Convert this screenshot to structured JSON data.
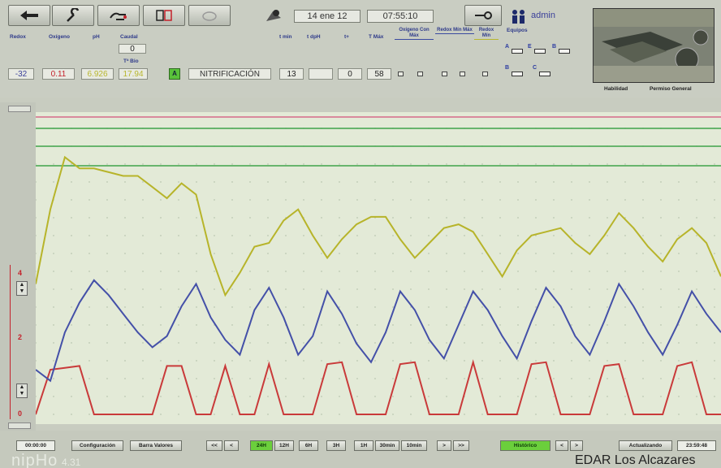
{
  "toolbar": {
    "buttons": [
      "back-icon",
      "wrench-icon",
      "hand-icon",
      "chart-icon",
      "cloud-icon"
    ],
    "date": "14 ene 12",
    "time": "07:55:10",
    "user": "admin"
  },
  "params": {
    "headers": [
      "Redox",
      "Oxígeno",
      "pH",
      "Caudal"
    ],
    "caudal_value": "0",
    "temp_label": "Tª Bio",
    "values": [
      "-32",
      "0.11",
      "6.926",
      "17.94"
    ],
    "mode_badge": "A",
    "phase": "NITRIFICACIÓN",
    "right_headers": [
      "t min",
      "t dpH",
      "t+",
      "T Máx",
      "Oxígeno Con Máx",
      "Redox Mín Máx",
      "Redox Mín"
    ],
    "right_values": [
      "13",
      "",
      "0",
      "58"
    ],
    "equipos_label": "Equipos",
    "equipos": [
      "A",
      "E",
      "B",
      "B",
      "C"
    ]
  },
  "camera": {
    "labels": [
      "Habilidad",
      "Permiso General"
    ]
  },
  "chart_data": {
    "type": "line",
    "title": "",
    "xlabel": "",
    "ylabel": "",
    "yticks": [
      "4",
      "2",
      "0"
    ],
    "series": [
      {
        "color": "#c93a3a",
        "values": [
          0,
          1.2,
          1.25,
          1.3,
          0,
          0,
          0,
          0,
          0,
          1.3,
          1.3,
          0,
          0,
          1.3,
          0,
          0,
          1.35,
          0,
          0,
          0,
          1.35,
          1.4,
          0,
          0,
          0,
          1.35,
          1.4,
          0,
          0,
          0,
          1.4,
          0,
          0,
          0,
          1.35,
          1.4,
          0,
          0,
          0,
          1.3,
          1.35,
          0,
          0,
          0,
          1.3,
          1.4,
          0,
          0
        ]
      },
      {
        "color": "#4450a8",
        "values": [
          1.2,
          0.9,
          2.2,
          3.0,
          3.6,
          3.2,
          2.7,
          2.2,
          1.8,
          2.1,
          2.9,
          3.5,
          2.6,
          2.0,
          1.6,
          2.8,
          3.4,
          2.6,
          1.6,
          2.1,
          3.3,
          2.7,
          1.9,
          1.4,
          2.2,
          3.3,
          2.8,
          2.0,
          1.5,
          2.4,
          3.3,
          2.8,
          2.1,
          1.5,
          2.5,
          3.4,
          2.9,
          2.1,
          1.6,
          2.5,
          3.5,
          2.9,
          2.2,
          1.6,
          2.4,
          3.3,
          2.7,
          2.2
        ]
      },
      {
        "color": "#b7b42a",
        "values": [
          3.5,
          5.5,
          6.9,
          6.6,
          6.6,
          6.5,
          6.4,
          6.4,
          6.1,
          5.8,
          6.2,
          5.9,
          4.3,
          3.2,
          3.8,
          4.5,
          4.6,
          5.2,
          5.5,
          4.8,
          4.2,
          4.7,
          5.1,
          5.3,
          5.3,
          4.7,
          4.2,
          4.6,
          5.0,
          5.1,
          4.9,
          4.3,
          3.7,
          4.4,
          4.8,
          4.9,
          5.0,
          4.6,
          4.3,
          4.8,
          5.4,
          5.0,
          4.5,
          4.1,
          4.7,
          5.0,
          4.6,
          3.7
        ]
      }
    ],
    "ref_lines": [
      {
        "color": "#3fa34a"
      },
      {
        "color": "#3fa34a"
      },
      {
        "color": "#d46a8a"
      }
    ]
  },
  "bottom": {
    "start_time": "00:00:00",
    "config": "Configuración",
    "bars": "Barra Valores",
    "nav_left": [
      "<<",
      "<"
    ],
    "ranges": [
      "24H",
      "12H",
      "6H",
      "3H",
      "1H",
      "30min",
      "10min"
    ],
    "active_range": "24H",
    "nav_right": [
      ">",
      ">>"
    ],
    "hist": "Histórico",
    "hist_nav": [
      "<",
      ">"
    ],
    "updating": "Actualizando",
    "end_time": "23:59:48",
    "brand": "nipHo",
    "version": "4.31",
    "site": "EDAR Los Alcazares"
  }
}
